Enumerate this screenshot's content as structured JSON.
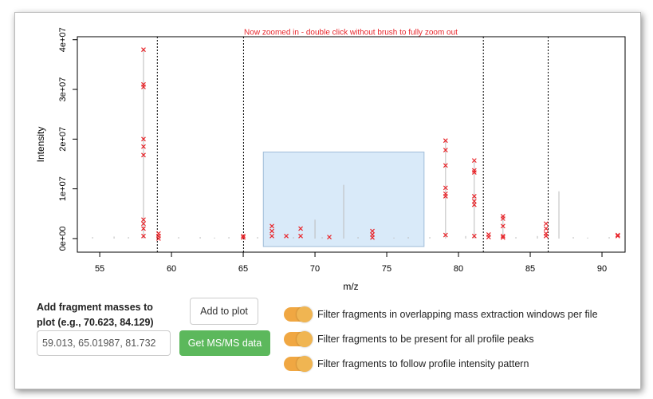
{
  "chart_data": {
    "type": "scatter",
    "title": "Now zoomed in - double click without brush to fully zoom out",
    "xlabel": "m/z",
    "ylabel": "Intensity",
    "xlim": [
      53.44,
      91.61
    ],
    "ylim": [
      -2740000,
      40600000
    ],
    "xticks": [
      55,
      60,
      65,
      70,
      75,
      80,
      85,
      90
    ],
    "yticks": [
      {
        "value": 0,
        "label": "0e+00"
      },
      {
        "value": 10000000,
        "label": "1e+07"
      },
      {
        "value": 20000000,
        "label": "2e+07"
      },
      {
        "value": 30000000,
        "label": "3e+07"
      },
      {
        "value": 40000000,
        "label": "4e+07"
      }
    ],
    "vlines": [
      59.013,
      65.01987,
      81.732,
      86.25
    ],
    "brush": {
      "xlim": [
        66.4,
        77.6
      ],
      "ylim": [
        -1600000,
        17400000
      ]
    },
    "stems": {
      "color": "#bbbbbb",
      "x": [
        54.5,
        56,
        57,
        58.05,
        60.5,
        62,
        63,
        64,
        66,
        68.5,
        70,
        70.5,
        72,
        73,
        75.5,
        76.5,
        78,
        79.1,
        80.5,
        81.1,
        83.1,
        84,
        85.5,
        87,
        88,
        89,
        90.5
      ],
      "values": [
        300000,
        400000,
        300000,
        38000000,
        300000,
        300000,
        200000,
        300000,
        300000,
        300000,
        3800000,
        300000,
        10800000,
        300000,
        200000,
        300000,
        300000,
        19700000,
        500000,
        15700000,
        4500000,
        300000,
        500000,
        9500000,
        300000,
        200000,
        300000
      ]
    },
    "series": [
      {
        "name": "fragments",
        "color": "#e8262b",
        "x": [
          58.05,
          58.05,
          58.05,
          58.05,
          58.05,
          58.05,
          58.05,
          58.05,
          58.05,
          58.05,
          59.1,
          59.1,
          59.1,
          65,
          65,
          67,
          67,
          67,
          68,
          69,
          69,
          71,
          74,
          74,
          74,
          79.1,
          79.1,
          79.1,
          79.1,
          79.1,
          79.1,
          79.1,
          81.1,
          81.1,
          81.1,
          81.1,
          81.1,
          81.1,
          81.1,
          82.1,
          82.1,
          83.1,
          83.1,
          83.1,
          83.1,
          83.1,
          86.1,
          86.1,
          86.1,
          86.1,
          91.1,
          91.1
        ],
        "values": [
          38000000,
          31000000,
          30500000,
          20000000,
          18500000,
          16800000,
          3800000,
          3000000,
          2000000,
          500000,
          1000000,
          500000,
          0,
          500000,
          200000,
          2500000,
          1500000,
          500000,
          500000,
          2000000,
          500000,
          300000,
          1500000,
          800000,
          200000,
          19700000,
          17800000,
          14700000,
          10200000,
          9000000,
          8500000,
          700000,
          15700000,
          13700000,
          13300000,
          8500000,
          7500000,
          6800000,
          500000,
          800000,
          300000,
          4500000,
          4000000,
          2500000,
          500000,
          200000,
          3000000,
          2000000,
          1000000,
          500000,
          700000,
          500000
        ]
      }
    ]
  },
  "controls": {
    "input_label": "Add fragment masses to plot (e.g., 70.623, 84.129)",
    "input_value": "59.013, 65.01987, 81.732",
    "add_button": "Add to plot",
    "get_button": "Get MS/MS data",
    "toggles": [
      "Filter fragments in overlapping mass extraction windows per file",
      "Filter fragments to be present for all profile peaks",
      "Filter fragments to follow profile intensity pattern"
    ]
  }
}
